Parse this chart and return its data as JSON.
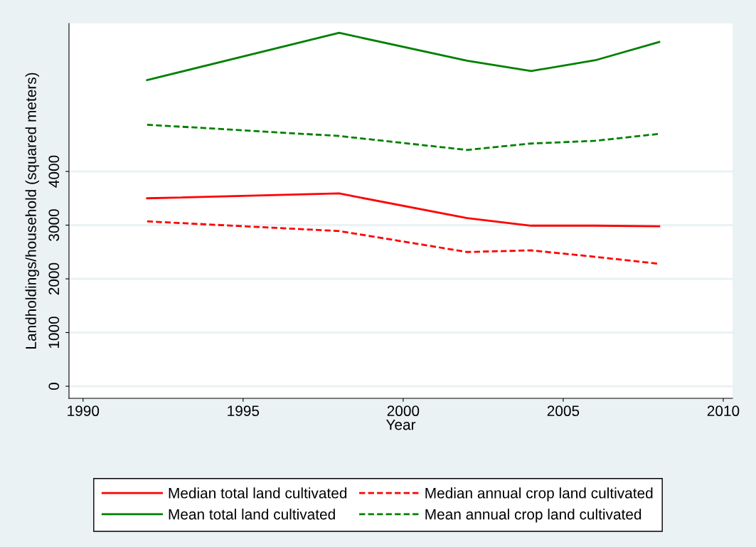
{
  "chart_data": {
    "type": "line",
    "xlabel": "Year",
    "ylabel": "Landholdings/household (squared meters)",
    "xlim": [
      1989.56,
      2010.29
    ],
    "xticks": [
      1990,
      1995,
      2000,
      2005,
      2010
    ],
    "ylim": [
      -225,
      6755
    ],
    "yticks": [
      0,
      1000,
      2000,
      3000,
      4000
    ],
    "grid": "y",
    "legend": "bottom",
    "series": [
      {
        "name": "Median total land cultivated",
        "color": "#ff0000",
        "line_style": "solid",
        "x": [
          1992,
          1998,
          2002,
          2004,
          2006,
          2008
        ],
        "values": [
          3500,
          3590,
          3130,
          2990,
          2990,
          2980
        ]
      },
      {
        "name": "Median annual crop land cultivated",
        "color": "#ff0000",
        "line_style": "dashed",
        "x": [
          1992,
          1998,
          2002,
          2004,
          2006,
          2008
        ],
        "values": [
          3070,
          2890,
          2500,
          2530,
          2410,
          2280
        ]
      },
      {
        "name": "Mean total land cultivated",
        "color": "#008000",
        "line_style": "solid",
        "x": [
          1992,
          1998,
          2002,
          2004,
          2006,
          2008
        ],
        "values": [
          5700,
          6580,
          6060,
          5870,
          6070,
          6410
        ]
      },
      {
        "name": "Mean annual crop land cultivated",
        "color": "#008000",
        "line_style": "dashed",
        "x": [
          1992,
          1998,
          2002,
          2004,
          2006,
          2008
        ],
        "values": [
          4870,
          4660,
          4400,
          4520,
          4570,
          4700
        ]
      }
    ]
  }
}
